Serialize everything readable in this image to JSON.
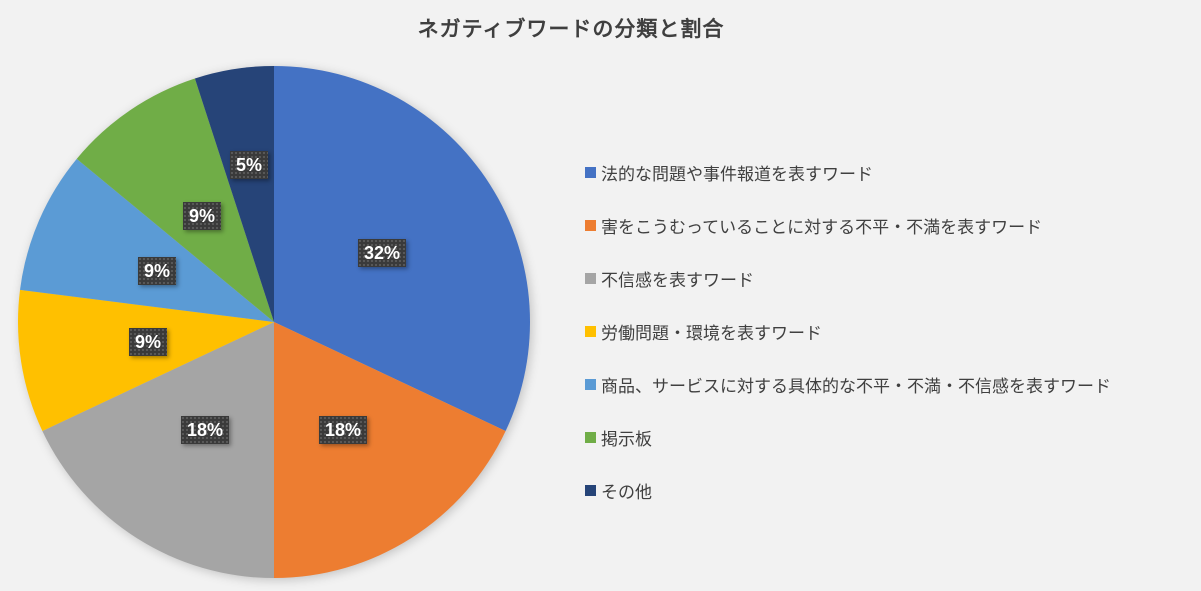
{
  "title": "ネガティブワードの分類と割合",
  "colors": {
    "background": "#f2f2f2",
    "title_text": "#3f3f3f",
    "legend_text": "#404040",
    "label_box": "#3a3a3a",
    "label_text": "#ffffff"
  },
  "chart_data": {
    "type": "pie",
    "title": "ネガティブワードの分類と割合",
    "legend_position": "right",
    "start_angle_deg": 0,
    "direction": "clockwise",
    "slices": [
      {
        "label": "法的な問題や事件報道を表すワード",
        "value": 32,
        "percent_label": "32%",
        "color": "#4472C4",
        "label_r": 0.5
      },
      {
        "label": "害をこうむっていることに対する不平・不満を表すワード",
        "value": 18,
        "percent_label": "18%",
        "color": "#ED7D31",
        "label_r": 0.5
      },
      {
        "label": "不信感を表すワード",
        "value": 18,
        "percent_label": "18%",
        "color": "#A5A5A5",
        "label_r": 0.5
      },
      {
        "label": "労働問題・環境を表すワード",
        "value": 9,
        "percent_label": "9%",
        "color": "#FFC000",
        "label_r": 0.5
      },
      {
        "label": "商品、サービスに対する具体的な不平・不満・不信感を表すワード",
        "value": 9,
        "percent_label": "9%",
        "color": "#5B9BD5",
        "label_r": 0.5
      },
      {
        "label": "掲示板",
        "value": 9,
        "percent_label": "9%",
        "color": "#70AD47",
        "label_r": 0.5
      },
      {
        "label": "その他",
        "value": 5,
        "percent_label": "5%",
        "color": "#264478",
        "label_r": 0.62
      }
    ]
  }
}
